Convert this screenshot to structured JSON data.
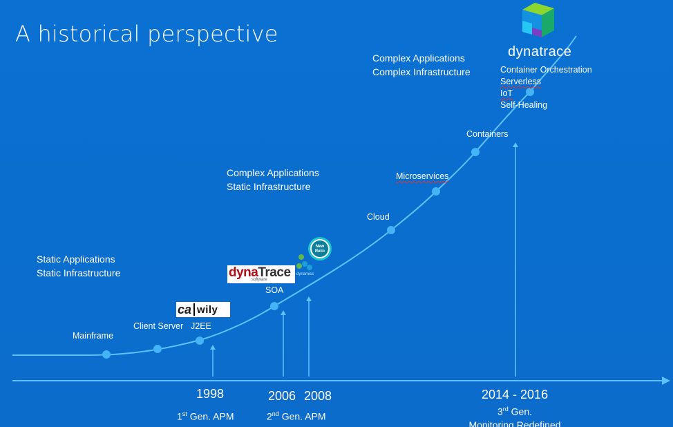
{
  "title": "A historical perspective",
  "phases": [
    {
      "line1": "Static Applications",
      "line2": "Static Infrastructure"
    },
    {
      "line1": "Complex Applications",
      "line2": "Static Infrastructure"
    },
    {
      "line1": "Complex Applications",
      "line2": "Complex Infrastructure"
    }
  ],
  "milestones": {
    "mainframe": "Mainframe",
    "client_server": "Client Server",
    "j2ee": "J2EE",
    "soa": "SOA",
    "cloud": "Cloud",
    "microservices": "Microservices",
    "containers": "Containers",
    "latest": [
      "Container Orchestration",
      "Serverless",
      "IoT",
      "Self-Healing"
    ]
  },
  "years": {
    "y1998": "1998",
    "y2006": "2006",
    "y2008": "2008",
    "y2014_2016": "2014 - 2016"
  },
  "generations": {
    "first": {
      "num": "1",
      "sup": "st",
      "rest": "Gen. APM"
    },
    "second": {
      "num": "2",
      "sup": "nd",
      "rest": "Gen. APM"
    },
    "third": {
      "num": "3",
      "sup": "rd",
      "rest": "Gen.",
      "line2": "Monitoring Redefined"
    }
  },
  "logos": {
    "ca_text": "ca",
    "wily_text": "wily",
    "dynatrace_old_a": "dyna",
    "dynatrace_old_b": "Trace",
    "dynatrace_old_sub": "software",
    "new_relic": "New Relic",
    "appdynamics_sub": "dynamics",
    "dynatrace_new": "dynatrace"
  },
  "colors": {
    "background": "#0a70d2",
    "line": "#5fc2ff",
    "node": "#44b4f6"
  }
}
